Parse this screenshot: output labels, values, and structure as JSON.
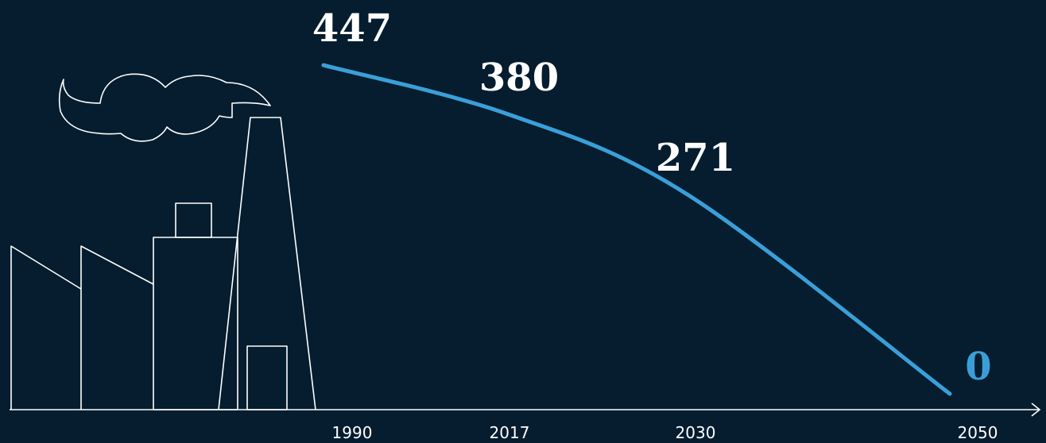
{
  "chart_data": {
    "type": "line",
    "categories": [
      "1990",
      "2017",
      "2030",
      "2050"
    ],
    "series": [
      {
        "color": "#3a9fd9",
        "values": [
          447,
          380,
          271,
          0
        ]
      }
    ],
    "axis_color": "#ffffff",
    "background": "#051d2e"
  }
}
